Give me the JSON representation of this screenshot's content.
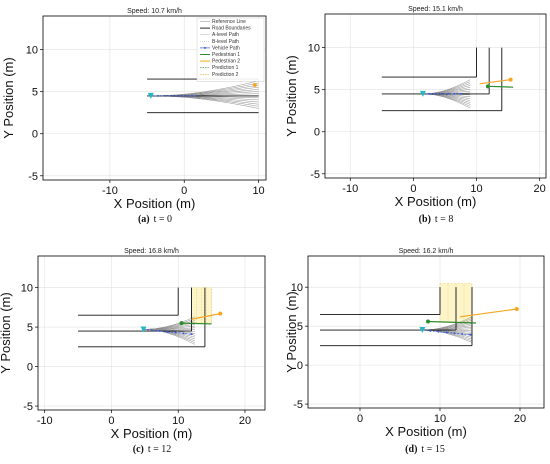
{
  "chart_data": [
    {
      "type": "line",
      "panel_id": "a",
      "title": "Speed: 10.7 km/h",
      "caption_letter": "(a)",
      "caption_text": "t = 0",
      "xlabel": "X Position (m)",
      "ylabel": "Y Position (m)",
      "xlim": [
        -19,
        11
      ],
      "ylim": [
        -5.5,
        14
      ],
      "xticks": [
        -10,
        0,
        10
      ],
      "yticks": [
        -5,
        0,
        5,
        10
      ],
      "grid": true,
      "legend": {
        "placement": "top-right",
        "entries": [
          "Reference Line",
          "Road Boundaries",
          "A-level Path",
          "B-level Path",
          "Vehicle Path",
          "Pedestrian 1",
          "Pedestrian 2",
          "Prediction 1",
          "Prediction 2"
        ]
      },
      "vehicle": {
        "x": -4.5,
        "y": 4.5
      },
      "vehicle_path": {
        "x": [
          -4.5,
          -3.5,
          -2.5,
          -1.5,
          -0.5,
          0.5,
          1.5
        ],
        "y": [
          4.5,
          4.5,
          4.5,
          4.5,
          4.5,
          4.5,
          4.5
        ]
      },
      "road_upper": {
        "x": [
          -5,
          10
        ],
        "y": [
          6.5,
          6.5
        ]
      },
      "road_middle": {
        "x": [
          -5,
          10
        ],
        "y": [
          4.5,
          4.5
        ]
      },
      "road_lower": {
        "x": [
          -5,
          10
        ],
        "y": [
          2.5,
          2.5
        ]
      },
      "vertical_boundaries": [],
      "fan_origin": {
        "x": -4.5,
        "y": 4.5
      },
      "fan_end_x": 10,
      "fan_y_range": [
        3,
        6.3
      ],
      "fan_count": 14,
      "pedestrians": [
        {
          "name": "Pedestrian 2",
          "x": 9.5,
          "y": 5.8,
          "color": "#f5a623"
        }
      ],
      "prediction_lines": []
    },
    {
      "type": "line",
      "panel_id": "b",
      "title": "Speed: 15.1 km/h",
      "caption_letter": "(b)",
      "caption_text": "t = 8",
      "xlabel": "X Position (m)",
      "ylabel": "Y Position (m)",
      "xlim": [
        -14,
        21
      ],
      "ylim": [
        -5.5,
        14
      ],
      "xticks": [
        -10,
        0,
        10,
        20
      ],
      "yticks": [
        -5,
        0,
        5,
        10
      ],
      "grid": true,
      "vehicle": {
        "x": 1.5,
        "y": 4.5
      },
      "vehicle_path": {
        "x": [
          1.5,
          2.5,
          3.5,
          4.5,
          5.5,
          6.5,
          7.5
        ],
        "y": [
          4.5,
          4.5,
          4.5,
          4.5,
          4.5,
          4.5,
          4.5
        ]
      },
      "road_upper": {
        "x": [
          -5,
          10
        ],
        "y": [
          6.5,
          6.5
        ]
      },
      "road_middle": {
        "x": [
          -5,
          12
        ],
        "y": [
          4.5,
          4.5
        ]
      },
      "road_lower": {
        "x": [
          -5,
          14
        ],
        "y": [
          2.5,
          2.5
        ]
      },
      "vertical_boundaries": [
        {
          "x": 10,
          "y": [
            6.5,
            10
          ]
        },
        {
          "x": 12,
          "y": [
            4.5,
            10
          ]
        },
        {
          "x": 14,
          "y": [
            2.5,
            10
          ]
        }
      ],
      "fan_origin": {
        "x": 1.5,
        "y": 4.5
      },
      "fan_end_x": 9,
      "fan_y_range": [
        2.8,
        6.2
      ],
      "fan_count": 16,
      "pedestrians": [
        {
          "name": "Pedestrian 1",
          "x": 11.8,
          "y": 5.4,
          "color": "#2e8b2e"
        },
        {
          "name": "Pedestrian 2",
          "x": 15.4,
          "y": 6.2,
          "color": "#f5a623"
        }
      ],
      "prediction_lines": [
        {
          "x": [
            11.8,
            15.8
          ],
          "y": [
            5.4,
            5.3
          ],
          "color": "#2e8b2e"
        },
        {
          "x": [
            10.5,
            15.4
          ],
          "y": [
            5.7,
            6.2
          ],
          "color": "#f5a623"
        }
      ]
    },
    {
      "type": "line",
      "panel_id": "c",
      "title": "Speed: 16.8 km/h",
      "caption_letter": "(c)",
      "caption_text": "t = 12",
      "xlabel": "X Position (m)",
      "ylabel": "Y Position (m)",
      "xlim": [
        -11,
        23
      ],
      "ylim": [
        -5.5,
        14
      ],
      "xticks": [
        -10,
        0,
        10,
        20
      ],
      "yticks": [
        -5,
        0,
        5,
        10
      ],
      "grid": true,
      "vehicle": {
        "x": 4.8,
        "y": 4.7
      },
      "vehicle_path": {
        "x": [
          4.8,
          6,
          7.2,
          8.4,
          9.6,
          10.8,
          12
        ],
        "y": [
          4.7,
          4.6,
          4.5,
          4.4,
          4.3,
          4.2,
          4.1
        ]
      },
      "road_upper": {
        "x": [
          -5,
          10
        ],
        "y": [
          6.5,
          6.5
        ]
      },
      "road_middle": {
        "x": [
          -5,
          12
        ],
        "y": [
          4.5,
          4.5
        ]
      },
      "road_lower": {
        "x": [
          -5,
          14
        ],
        "y": [
          2.5,
          2.5
        ]
      },
      "vertical_boundaries": [
        {
          "x": 10,
          "y": [
            6.5,
            10
          ]
        },
        {
          "x": 12,
          "y": [
            4.5,
            10
          ]
        },
        {
          "x": 14,
          "y": [
            2.5,
            10
          ]
        }
      ],
      "fan_origin": {
        "x": 4.8,
        "y": 4.7
      },
      "fan_end_x": 12.5,
      "fan_y_range": [
        2.8,
        6.3
      ],
      "fan_count": 16,
      "pedestrians": [
        {
          "name": "Pedestrian 1",
          "x": 10.5,
          "y": 5.5,
          "color": "#2e8b2e"
        },
        {
          "name": "Pedestrian 2",
          "x": 16.3,
          "y": 6.7,
          "color": "#f5a623"
        }
      ],
      "prediction_lines": [
        {
          "x": [
            10.5,
            15
          ],
          "y": [
            5.5,
            5.4
          ],
          "color": "#2e8b2e"
        },
        {
          "x": [
            12,
            16.3
          ],
          "y": [
            6,
            6.7
          ],
          "color": "#f5a623"
        }
      ],
      "prediction_zone": {
        "x": [
          12,
          15
        ],
        "y": [
          5.5,
          10
        ]
      }
    },
    {
      "type": "line",
      "panel_id": "d",
      "title": "Speed: 16.2 km/h",
      "caption_letter": "(d)",
      "caption_text": "t = 15",
      "xlabel": "X Position (m)",
      "ylabel": "Y Position (m)",
      "xlim": [
        -6.5,
        23
      ],
      "ylim": [
        -5.5,
        14
      ],
      "xticks": [
        0,
        10,
        20
      ],
      "yticks": [
        -5,
        0,
        5,
        10
      ],
      "grid": true,
      "vehicle": {
        "x": 7.8,
        "y": 4.5
      },
      "vehicle_path": {
        "x": [
          7.8,
          8.8,
          9.8,
          10.8,
          11.8,
          12.8,
          13.8
        ],
        "y": [
          4.5,
          4.4,
          4.3,
          4.2,
          4.1,
          4,
          3.9
        ]
      },
      "road_upper": {
        "x": [
          -5,
          10
        ],
        "y": [
          6.5,
          6.5
        ]
      },
      "road_middle": {
        "x": [
          -5,
          12
        ],
        "y": [
          4.5,
          4.5
        ]
      },
      "road_lower": {
        "x": [
          -5,
          14
        ],
        "y": [
          2.5,
          2.5
        ]
      },
      "vertical_boundaries": [
        {
          "x": 10,
          "y": [
            6.5,
            10
          ]
        },
        {
          "x": 12,
          "y": [
            4.5,
            10
          ]
        },
        {
          "x": 14,
          "y": [
            2.5,
            10
          ]
        }
      ],
      "fan_origin": {
        "x": 7.8,
        "y": 4.5
      },
      "fan_end_x": 14,
      "fan_y_range": [
        2.9,
        6.2
      ],
      "fan_count": 16,
      "pedestrians": [
        {
          "name": "Pedestrian 1",
          "x": 8.5,
          "y": 5.6,
          "color": "#2e8b2e"
        },
        {
          "name": "Pedestrian 2",
          "x": 19.6,
          "y": 7.2,
          "color": "#f5a623"
        }
      ],
      "prediction_lines": [
        {
          "x": [
            8.5,
            14.5
          ],
          "y": [
            5.6,
            5.4
          ],
          "color": "#2e8b2e"
        },
        {
          "x": [
            12.5,
            19.6
          ],
          "y": [
            6.2,
            7.2
          ],
          "color": "#f5a623"
        }
      ],
      "prediction_zone": {
        "x": [
          10,
          14
        ],
        "y": [
          5.5,
          10.5
        ]
      }
    }
  ],
  "colors": {
    "road": "#111111",
    "reference": "#9a9a9a",
    "fan": "#8f8f8f",
    "vehicle": "#3a5bd9",
    "vehicle_marker": "#23b7c7",
    "zone": "#fdf4c8",
    "grid": "#e2e2e2"
  }
}
